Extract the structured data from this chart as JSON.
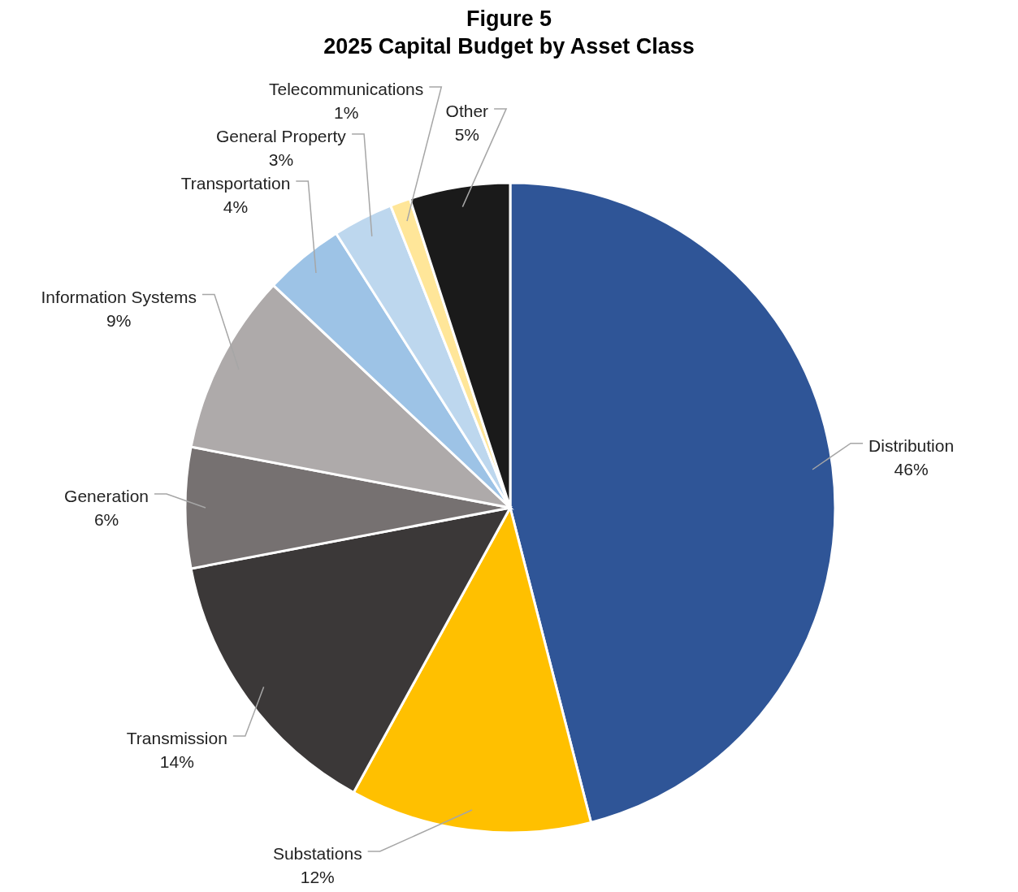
{
  "chart_data": {
    "type": "pie",
    "title": "Figure 5",
    "subtitle": "2025 Capital Budget by Asset Class",
    "categories": [
      "Distribution",
      "Substations",
      "Transmission",
      "Generation",
      "Information Systems",
      "Transportation",
      "General Property",
      "Telecommunications",
      "Other"
    ],
    "values": [
      46,
      12,
      14,
      6,
      9,
      4,
      3,
      1,
      5
    ],
    "value_labels": [
      "46%",
      "12%",
      "14%",
      "6%",
      "9%",
      "4%",
      "3%",
      "1%",
      "5%"
    ],
    "colors": [
      "#2f5597",
      "#ffc000",
      "#3b3838",
      "#767171",
      "#aeaaaa",
      "#9dc3e6",
      "#bdd7ee",
      "#ffe699",
      "#1a1a1a"
    ]
  }
}
